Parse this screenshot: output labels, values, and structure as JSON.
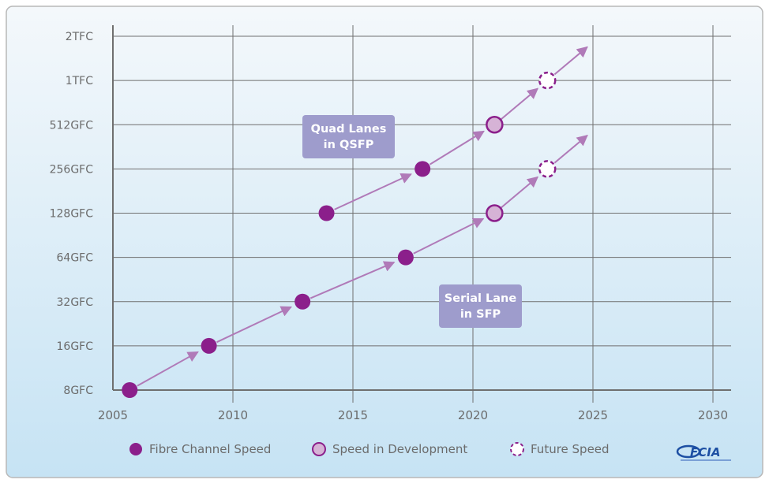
{
  "chart_data": {
    "type": "scatter",
    "y_scale": "log2",
    "x_range": [
      2005,
      2030
    ],
    "x_ticks": [
      2005,
      2010,
      2015,
      2020,
      2025,
      2030
    ],
    "y_levels": [
      "8GFC",
      "16GFC",
      "32GFC",
      "64GFC",
      "128GFC",
      "256GFC",
      "512GFC",
      "1TFC",
      "2TFC"
    ],
    "grid": true,
    "series": [
      {
        "name": "Serial Lane in SFP",
        "points": [
          {
            "x": 2005.7,
            "y": "8GFC",
            "status": "Fibre Channel Speed"
          },
          {
            "x": 2009.0,
            "y": "16GFC",
            "status": "Fibre Channel Speed"
          },
          {
            "x": 2012.9,
            "y": "32GFC",
            "status": "Fibre Channel Speed"
          },
          {
            "x": 2017.2,
            "y": "64GFC",
            "status": "Fibre Channel Speed"
          },
          {
            "x": 2020.9,
            "y": "128GFC",
            "status": "Speed in  Development"
          },
          {
            "x": 2023.1,
            "y": "256GFC",
            "status": "Future Speed"
          }
        ]
      },
      {
        "name": "Quad Lanes in QSFP",
        "points": [
          {
            "x": 2013.9,
            "y": "128GFC",
            "status": "Fibre Channel Speed"
          },
          {
            "x": 2017.9,
            "y": "256GFC",
            "status": "Fibre Channel Speed"
          },
          {
            "x": 2020.9,
            "y": "512GFC",
            "status": "Speed in  Development"
          },
          {
            "x": 2023.1,
            "y": "1TFC",
            "status": "Future Speed"
          }
        ]
      }
    ],
    "annotations": [
      {
        "lines": [
          "Quad Lanes",
          "in QSFP"
        ]
      },
      {
        "lines": [
          "Serial Lane",
          "in SFP"
        ]
      }
    ],
    "legend": {
      "placement": "bottom",
      "items": [
        "Fibre Channel Speed",
        "Speed in  Development",
        "Future Speed"
      ]
    },
    "logo_text": "FCIA",
    "colors": {
      "point_fill": "#8b1f8b",
      "development_fill": "#d6b3d6",
      "arrow": "#b07ab8",
      "annotation_bg": "#9e9ccc",
      "grid": "#6f6f6f",
      "background_top": "#f4f8fb",
      "background_bottom": "#c6e3f4"
    }
  }
}
